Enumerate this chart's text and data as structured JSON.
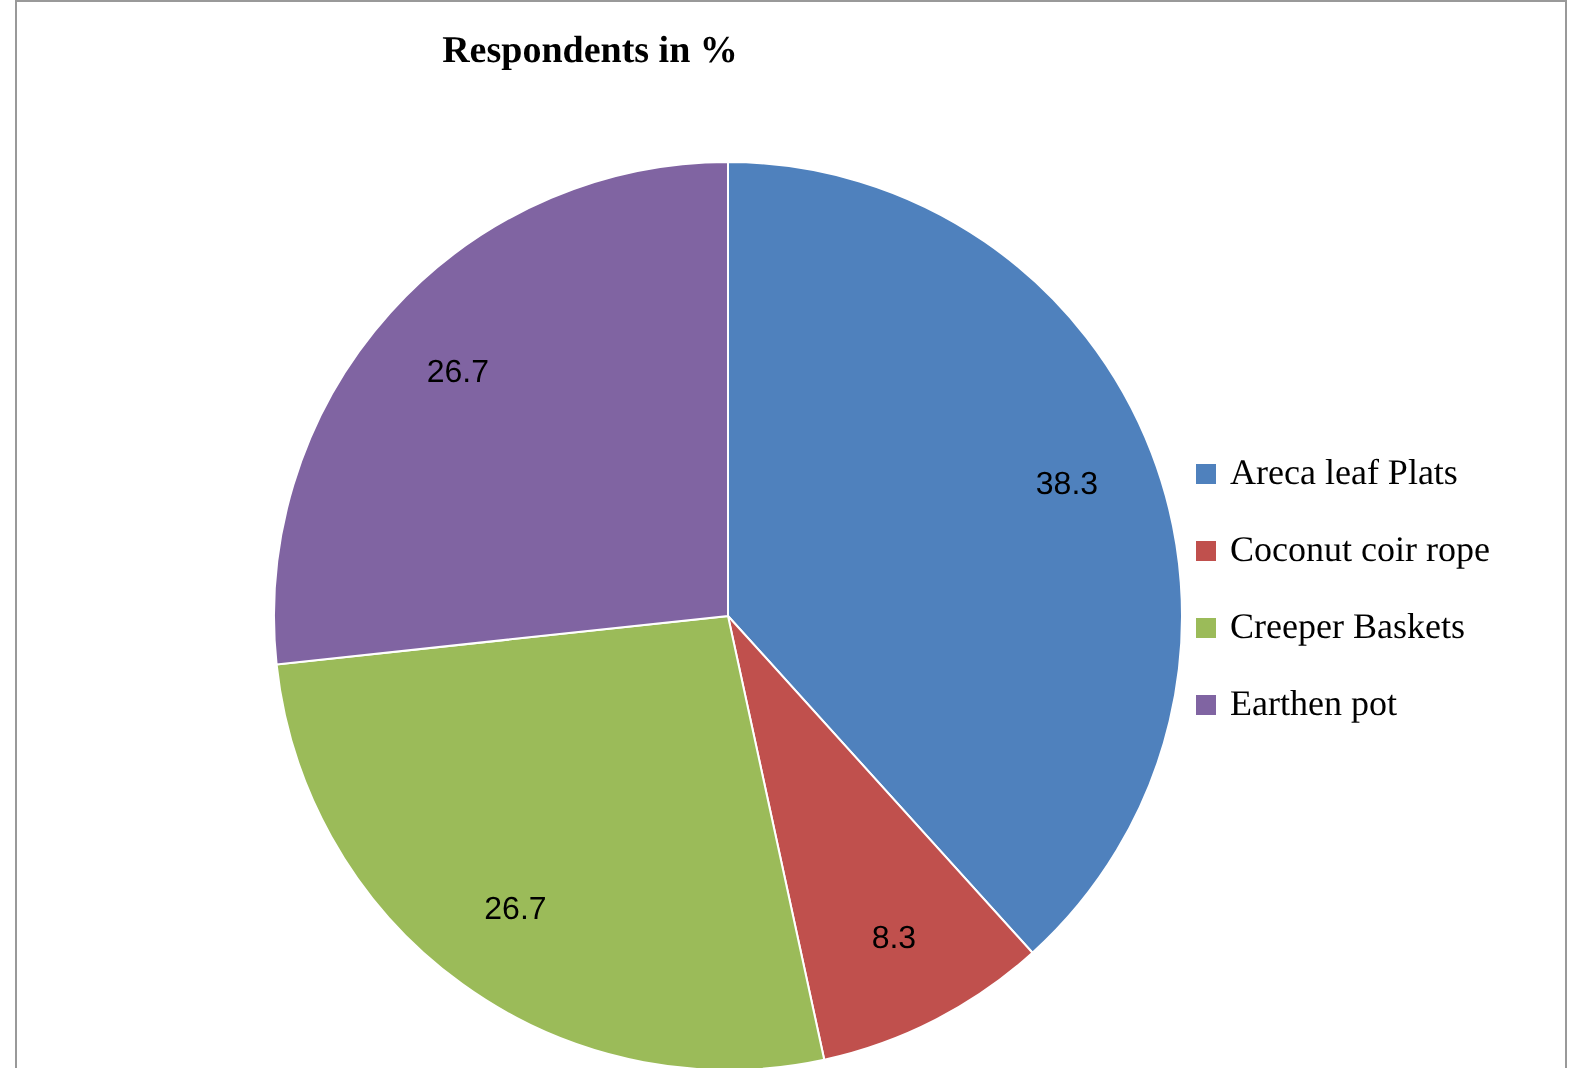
{
  "chart_data": {
    "type": "pie",
    "title": "Respondents in %",
    "categories": [
      "Areca leaf Plats",
      "Coconut coir rope",
      "Creeper Baskets",
      "Earthen pot"
    ],
    "values": [
      38.3,
      8.3,
      26.7,
      26.7
    ],
    "colors": [
      "#4f81bd",
      "#c0504d",
      "#9bbb59",
      "#8064a2"
    ],
    "data_labels": true,
    "legend": "right"
  }
}
